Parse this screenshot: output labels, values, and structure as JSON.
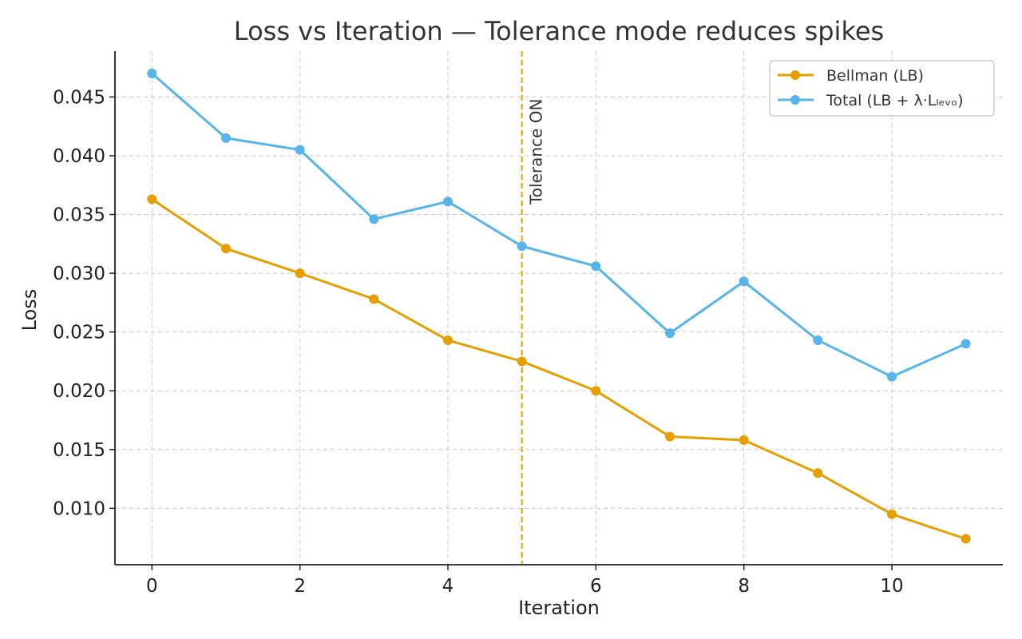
{
  "chart_data": {
    "type": "line",
    "title": "Loss vs Iteration — Tolerance mode reduces spikes",
    "xlabel": "Iteration",
    "ylabel": "Loss",
    "x": [
      0,
      1,
      2,
      3,
      4,
      5,
      6,
      7,
      8,
      9,
      10,
      11
    ],
    "xlim": [
      -0.5,
      11.5
    ],
    "ylim": [
      0.0052,
      0.0489
    ],
    "x_ticks": [
      "0",
      "2",
      "4",
      "6",
      "8",
      "10"
    ],
    "y_ticks": [
      "0.010",
      "0.015",
      "0.020",
      "0.025",
      "0.030",
      "0.035",
      "0.040",
      "0.045"
    ],
    "grid": true,
    "grid_style": "dashed",
    "legend_position": "top-right",
    "series": [
      {
        "name": "Bellman (LB)",
        "color": "#E69F00",
        "marker": "circle",
        "values": [
          0.0363,
          0.0321,
          0.03,
          0.0278,
          0.0243,
          0.0225,
          0.02,
          0.0161,
          0.0158,
          0.013,
          0.0095,
          0.0074
        ]
      },
      {
        "name": "Total (LB + λ·Lₗₑᵥₒ)",
        "color": "#56B4E9",
        "marker": "circle",
        "values": [
          0.047,
          0.0415,
          0.0405,
          0.0346,
          0.0361,
          0.0323,
          0.0306,
          0.0249,
          0.0293,
          0.0243,
          0.0212,
          0.024
        ]
      }
    ],
    "annotations": [
      {
        "type": "vline",
        "x": 5,
        "label": "Tolerance ON",
        "color": "#E69F00",
        "style": "dashed"
      }
    ]
  }
}
